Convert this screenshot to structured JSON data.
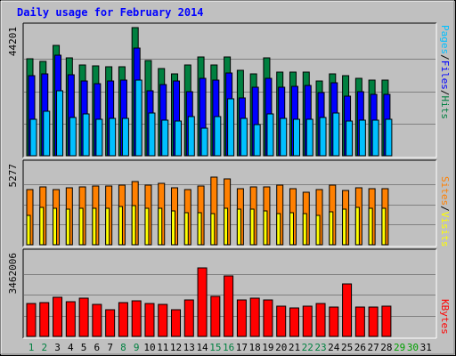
{
  "title": "Daily usage for February 2014",
  "colors": {
    "hits": "#008040",
    "files": "#0000ff",
    "pages": "#00c0ff",
    "sites": "#ff8000",
    "visits": "#ffff00",
    "kbytes": "#ff0000",
    "weekend_label": "#008040",
    "weekday_label": "#000000",
    "future_label": "#00a000"
  },
  "legend": {
    "pages": "Pages",
    "files": "Files",
    "hits": "Hits",
    "sites": "Sites",
    "visits": "Visits",
    "kbytes": "KBytes",
    "sep": "/"
  },
  "chart_data": [
    {
      "type": "bar",
      "name": "hits-files-pages",
      "ymax_label": "44201",
      "ylim": [
        0,
        44201
      ],
      "categories": [
        "1",
        "2",
        "3",
        "4",
        "5",
        "6",
        "7",
        "8",
        "9",
        "10",
        "11",
        "12",
        "13",
        "14",
        "15",
        "16",
        "17",
        "18",
        "19",
        "20",
        "21",
        "22",
        "23",
        "24",
        "25",
        "26",
        "27",
        "28"
      ],
      "series": [
        {
          "name": "Hits",
          "values": [
            33200,
            32200,
            37800,
            33400,
            31000,
            30800,
            30600,
            30600,
            44000,
            32700,
            29800,
            27900,
            31000,
            33900,
            31100,
            33800,
            29300,
            28000,
            33600,
            28600,
            28600,
            28600,
            25600,
            28000,
            27300,
            26400,
            26000,
            25800
          ]
        },
        {
          "name": "Files",
          "values": [
            27300,
            27900,
            34300,
            27800,
            25700,
            24800,
            25700,
            25900,
            37000,
            22400,
            24400,
            25700,
            21800,
            26400,
            25800,
            28500,
            19900,
            23600,
            26400,
            23500,
            23800,
            24000,
            21700,
            25100,
            20500,
            21800,
            21000,
            21000
          ]
        },
        {
          "name": "Pages",
          "values": [
            12500,
            15100,
            22200,
            13000,
            14300,
            12500,
            12800,
            12800,
            25800,
            14600,
            12300,
            11800,
            13300,
            9300,
            13500,
            19500,
            12900,
            10800,
            14400,
            12900,
            12600,
            12500,
            13200,
            14500,
            11800,
            12200,
            12300,
            12500
          ]
        }
      ]
    },
    {
      "type": "bar",
      "name": "sites-visits",
      "ymax_label": "5277",
      "ylim": [
        0,
        5277
      ],
      "categories": [
        "1",
        "2",
        "3",
        "4",
        "5",
        "6",
        "7",
        "8",
        "9",
        "10",
        "11",
        "12",
        "13",
        "14",
        "15",
        "16",
        "17",
        "18",
        "19",
        "20",
        "21",
        "22",
        "23",
        "24",
        "25",
        "26",
        "27",
        "28"
      ],
      "series": [
        {
          "name": "Sites",
          "values": [
            3610,
            3760,
            3600,
            3690,
            3790,
            3840,
            3840,
            3860,
            4120,
            3900,
            4010,
            3740,
            3610,
            3810,
            4380,
            4290,
            3640,
            3790,
            3790,
            3900,
            3660,
            3450,
            3620,
            3880,
            3560,
            3690,
            3640,
            3640
          ]
        },
        {
          "name": "Visits",
          "values": [
            1910,
            2410,
            2370,
            2300,
            2390,
            2400,
            2370,
            2500,
            2540,
            2400,
            2370,
            2180,
            2100,
            2070,
            2050,
            2380,
            2320,
            2300,
            2230,
            2050,
            2060,
            2010,
            1930,
            2150,
            2300,
            2450,
            2350,
            2380
          ]
        }
      ]
    },
    {
      "type": "bar",
      "name": "kbytes",
      "ymax_label": "3462006",
      "ylim": [
        0,
        3462006
      ],
      "categories": [
        "1",
        "2",
        "3",
        "4",
        "5",
        "6",
        "7",
        "8",
        "9",
        "10",
        "11",
        "12",
        "13",
        "14",
        "15",
        "16",
        "17",
        "18",
        "19",
        "20",
        "21",
        "22",
        "23",
        "24",
        "25",
        "26",
        "27",
        "28"
      ],
      "series": [
        {
          "name": "KBytes",
          "values": [
            1360000,
            1400000,
            1620000,
            1440000,
            1590000,
            1320000,
            1100000,
            1390000,
            1460000,
            1370000,
            1320000,
            1100000,
            1510000,
            2850000,
            1660000,
            2510000,
            1510000,
            1580000,
            1520000,
            1250000,
            1170000,
            1270000,
            1380000,
            1230000,
            2170000,
            1220000,
            1230000,
            1260000
          ]
        }
      ]
    }
  ],
  "x_labels": [
    {
      "label": "1",
      "kind": "weekend"
    },
    {
      "label": "2",
      "kind": "weekend"
    },
    {
      "label": "3",
      "kind": "weekday"
    },
    {
      "label": "4",
      "kind": "weekday"
    },
    {
      "label": "5",
      "kind": "weekday"
    },
    {
      "label": "6",
      "kind": "weekday"
    },
    {
      "label": "7",
      "kind": "weekday"
    },
    {
      "label": "8",
      "kind": "weekend"
    },
    {
      "label": "9",
      "kind": "weekend"
    },
    {
      "label": "10",
      "kind": "weekday"
    },
    {
      "label": "11",
      "kind": "weekday"
    },
    {
      "label": "12",
      "kind": "weekday"
    },
    {
      "label": "13",
      "kind": "weekday"
    },
    {
      "label": "14",
      "kind": "weekday"
    },
    {
      "label": "15",
      "kind": "weekend"
    },
    {
      "label": "16",
      "kind": "weekend"
    },
    {
      "label": "17",
      "kind": "weekday"
    },
    {
      "label": "18",
      "kind": "weekday"
    },
    {
      "label": "19",
      "kind": "weekday"
    },
    {
      "label": "20",
      "kind": "weekday"
    },
    {
      "label": "21",
      "kind": "weekday"
    },
    {
      "label": "22",
      "kind": "weekend"
    },
    {
      "label": "23",
      "kind": "weekend"
    },
    {
      "label": "24",
      "kind": "weekday"
    },
    {
      "label": "25",
      "kind": "weekday"
    },
    {
      "label": "26",
      "kind": "weekday"
    },
    {
      "label": "27",
      "kind": "weekday"
    },
    {
      "label": "28",
      "kind": "weekday"
    },
    {
      "label": "29",
      "kind": "future"
    },
    {
      "label": "30",
      "kind": "future"
    },
    {
      "label": "31",
      "kind": "weekday"
    }
  ]
}
